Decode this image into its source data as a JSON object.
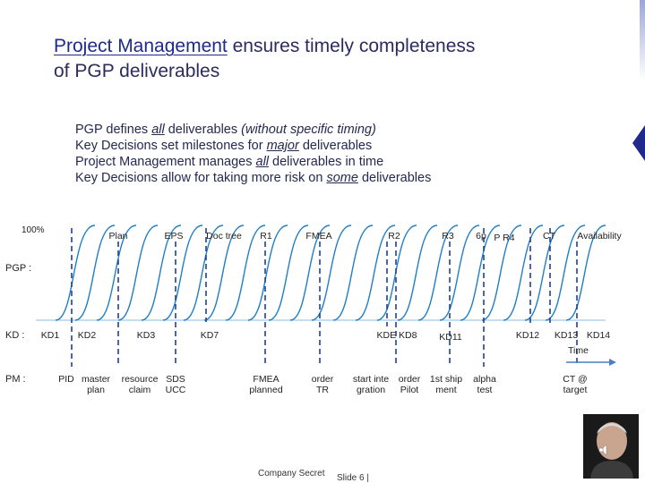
{
  "title": {
    "emphasis": "Project Management",
    "rest_line1": " ensures timely completeness",
    "line2": "of PGP deliverables"
  },
  "bullets": [
    {
      "pre": "PGP defines ",
      "u": "all",
      "post": " deliverables ",
      "italic": "(without specific timing)"
    },
    {
      "pre": "Key Decisions set milestones for ",
      "u": "major",
      "post": " deliverables",
      "italic": ""
    },
    {
      "pre": "Project Management manages ",
      "u": "all",
      "post": " deliverables in time",
      "italic": ""
    },
    {
      "pre": "Key Decisions allow for taking more risk on ",
      "u": "some",
      "post": " deliverables",
      "italic": ""
    }
  ],
  "axis": {
    "hundred": "100%",
    "time": "Time"
  },
  "rows": {
    "pgp": "PGP :",
    "kd": "KD :",
    "pm": "PM :"
  },
  "top_labels": [
    {
      "id": "plan",
      "text": "Plan"
    },
    {
      "id": "eps",
      "text": "EPS"
    },
    {
      "id": "doc-tree",
      "text": "Doc tree"
    },
    {
      "id": "r1",
      "text": "R1"
    },
    {
      "id": "fmea",
      "text": "FMEA"
    },
    {
      "id": "r2",
      "text": "R2"
    },
    {
      "id": "r3",
      "text": "R3"
    },
    {
      "id": "6p",
      "text": "6p"
    },
    {
      "id": "p-r4",
      "text": "P R4"
    },
    {
      "id": "ct",
      "text": "CT"
    },
    {
      "id": "availability",
      "text": "Availability"
    }
  ],
  "kd_labels": [
    {
      "id": "kd1",
      "text": "KD1"
    },
    {
      "id": "kd2",
      "text": "KD2"
    },
    {
      "id": "kd3",
      "text": "KD3"
    },
    {
      "id": "kd7",
      "text": "KD7"
    },
    {
      "id": "kde-kd8",
      "text": "KDE KD8"
    },
    {
      "id": "kd11",
      "text": "KD11"
    },
    {
      "id": "kd12",
      "text": "KD12"
    },
    {
      "id": "kd13",
      "text": "KD13"
    },
    {
      "id": "kd14",
      "text": "KD14"
    }
  ],
  "pm_labels": [
    {
      "id": "pid",
      "line1": "PID",
      "line2": ""
    },
    {
      "id": "master-plan",
      "line1": "master",
      "line2": "plan"
    },
    {
      "id": "resource-claim",
      "line1": "resource",
      "line2": "claim"
    },
    {
      "id": "sds-ucc",
      "line1": "SDS",
      "line2": "UCC"
    },
    {
      "id": "fmea-planned",
      "line1": "FMEA",
      "line2": "planned"
    },
    {
      "id": "order-tr",
      "line1": "order",
      "line2": "TR"
    },
    {
      "id": "start-integration",
      "line1": "start inte",
      "line2": "gration"
    },
    {
      "id": "order-pilot",
      "line1": "order",
      "line2": "Pilot"
    },
    {
      "id": "first-shipment",
      "line1": "1st ship",
      "line2": "ment"
    },
    {
      "id": "alpha-test",
      "line1": "alpha",
      "line2": "test"
    },
    {
      "id": "ct-at-target",
      "line1": "CT @",
      "line2": "target"
    }
  ],
  "footer": {
    "company": "Company Secret",
    "slide": "Slide 6  |"
  },
  "colors": {
    "curve": "#1e7fc4",
    "dashed": "#1f3f9c",
    "title": "#2b2b5e",
    "accent": "#1f2a8c",
    "arrow": "#4a7fc0"
  }
}
